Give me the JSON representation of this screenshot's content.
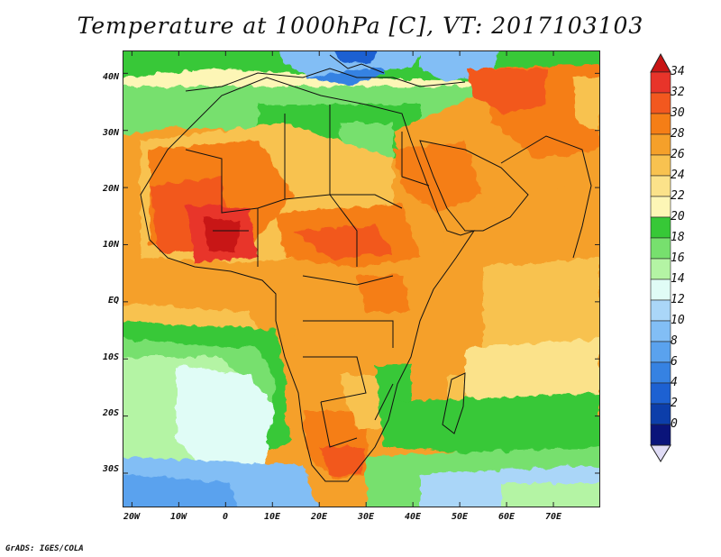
{
  "title": "Temperature at 1000hPa [C], VT: 2017103103",
  "credit": "GrADS: IGES/COLA",
  "map": {
    "lat_labels": [
      "40N",
      "30N",
      "20N",
      "10N",
      "EQ",
      "10S",
      "20S",
      "30S"
    ],
    "lon_labels": [
      "20W",
      "10W",
      "0",
      "10E",
      "20E",
      "30E",
      "40E",
      "50E",
      "60E",
      "70E"
    ],
    "lon_range": [
      -22,
      80
    ],
    "lat_range": [
      -36,
      44
    ]
  },
  "colorbar": {
    "labels": [
      "34",
      "32",
      "30",
      "28",
      "26",
      "24",
      "22",
      "20",
      "18",
      "16",
      "14",
      "12",
      "10",
      "8",
      "6",
      "4",
      "2",
      "0"
    ],
    "colors": [
      "#e8342a",
      "#f2581f",
      "#f57e16",
      "#f5a02a",
      "#f8c250",
      "#fbe28a",
      "#fdf6b6",
      "#37c837",
      "#77e06e",
      "#b4f4a4",
      "#e0fcf6",
      "#aad6f8",
      "#82bef5",
      "#5aa2ee",
      "#3682e2",
      "#1d61d2",
      "#0c3eaa",
      "#0a147a"
    ],
    "over_color": "#c81414",
    "under_color": "#e0dcf6"
  }
}
